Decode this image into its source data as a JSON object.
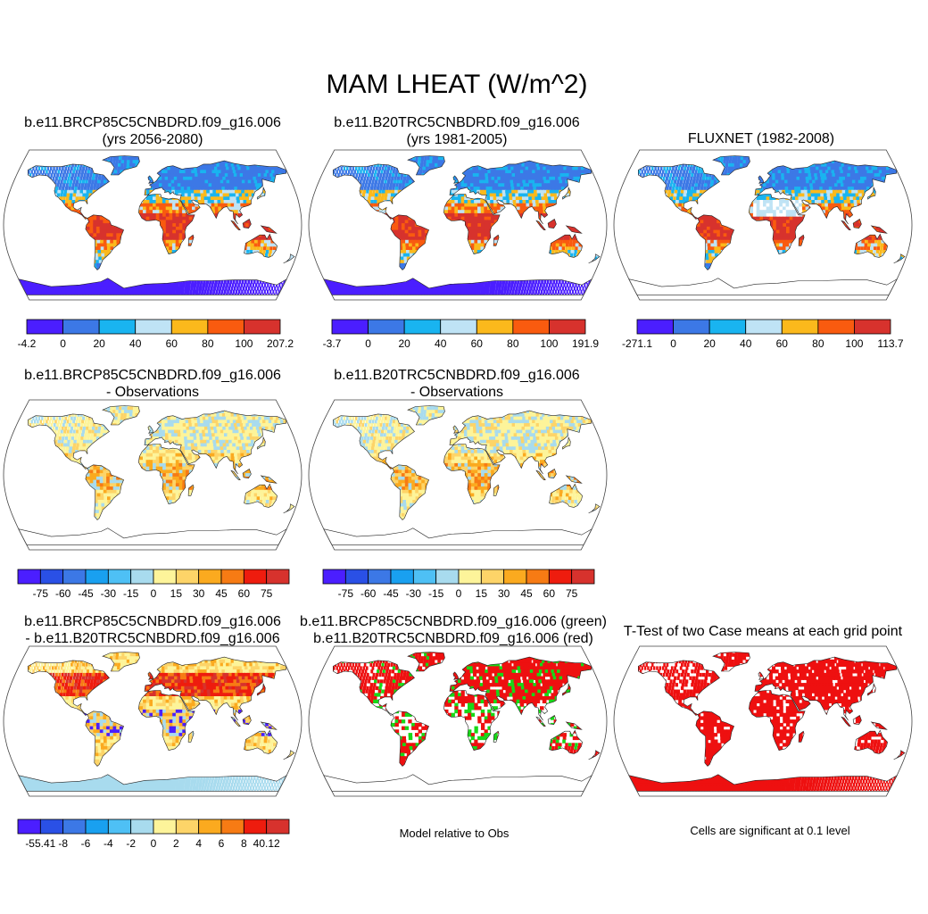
{
  "main_title": "MAM LHEAT (W/m^2)",
  "panels": [
    {
      "id": "p1",
      "title1": "b.e11.BRCP85C5CNBDRD.f09_g16.006",
      "title2": "(yrs 2056-2080)",
      "style": "abs"
    },
    {
      "id": "p2",
      "title1": "b.e11.B20TRC5CNBDRD.f09_g16.006",
      "title2": "(yrs 1981-2005)",
      "style": "abs"
    },
    {
      "id": "p3",
      "title1": "FLUXNET (1982-2008)",
      "title2": "",
      "style": "absobs"
    },
    {
      "id": "p4",
      "title1": "b.e11.BRCP85C5CNBDRD.f09_g16.006",
      "title2": "- Observations",
      "style": "diff"
    },
    {
      "id": "p5",
      "title1": "b.e11.B20TRC5CNBDRD.f09_g16.006",
      "title2": "- Observations",
      "style": "diff"
    },
    {
      "id": "p7",
      "title1": "b.e11.BRCP85C5CNBDRD.f09_g16.006",
      "title2": "- b.e11.B20TRC5CNBDRD.f09_g16.006",
      "style": "diff2"
    },
    {
      "id": "p8",
      "title1": "b.e11.BRCP85C5CNBDRD.f09_g16.006 (green)",
      "title2": "b.e11.B20TRC5CNBDRD.f09_g16.006 (red)",
      "style": "sig"
    },
    {
      "id": "p9",
      "title1": "T-Test of two Case means at each grid point",
      "title2": "",
      "style": "ttest"
    }
  ],
  "colorbars": {
    "cb1": {
      "colors": [
        "#4b1eff",
        "#3c78e6",
        "#19b4f0",
        "#bfe3f5",
        "#fbb91c",
        "#f95b0f",
        "#d7322d"
      ],
      "labels": [
        "-4.2",
        "0",
        "20",
        "40",
        "60",
        "80",
        "100",
        "207.2"
      ]
    },
    "cb2": {
      "colors": [
        "#4b1eff",
        "#3c78e6",
        "#19b4f0",
        "#bfe3f5",
        "#fbb91c",
        "#f95b0f",
        "#d7322d"
      ],
      "labels": [
        "-3.7",
        "0",
        "20",
        "40",
        "60",
        "80",
        "100",
        "191.9"
      ]
    },
    "cb3": {
      "colors": [
        "#4b1eff",
        "#3c78e6",
        "#19b4f0",
        "#bfe3f5",
        "#fbb91c",
        "#f95b0f",
        "#d7322d"
      ],
      "labels": [
        "-271.1",
        "0",
        "20",
        "40",
        "60",
        "80",
        "100",
        "113.7"
      ]
    },
    "cb4": {
      "colors": [
        "#4b1eff",
        "#2a50e6",
        "#3c78e6",
        "#19a0f0",
        "#4ec0f5",
        "#a8dbee",
        "#fdf49a",
        "#fdd468",
        "#fbaa1f",
        "#f77b14",
        "#ee1c0e",
        "#d7322d"
      ],
      "labels": [
        "-75",
        "-60",
        "-45",
        "-30",
        "-15",
        "0",
        "15",
        "30",
        "45",
        "60",
        "75"
      ]
    },
    "cb5": {
      "colors": [
        "#4b1eff",
        "#2a50e6",
        "#3c78e6",
        "#19a0f0",
        "#4ec0f5",
        "#a8dbee",
        "#fdf49a",
        "#fdd468",
        "#fbaa1f",
        "#f77b14",
        "#ee1c0e",
        "#d7322d"
      ],
      "labels": [
        "-75",
        "-60",
        "-45",
        "-30",
        "-15",
        "0",
        "15",
        "30",
        "45",
        "60",
        "75"
      ]
    },
    "cb7": {
      "colors": [
        "#4b1eff",
        "#2a50e6",
        "#3c78e6",
        "#19a0f0",
        "#4ec0f5",
        "#a8dbee",
        "#fdf49a",
        "#fdd468",
        "#fbaa1f",
        "#f77b14",
        "#ee1c0e",
        "#d7322d"
      ],
      "labels": [
        "-55.41",
        "-8",
        "-6",
        "-4",
        "-2",
        "0",
        "2",
        "4",
        "6",
        "8",
        "40.12"
      ]
    }
  },
  "notes": {
    "model_relative": "Model relative to Obs",
    "cells_significant": "Cells are significant at 0.1 level"
  },
  "palette": {
    "land_abs": [
      "#3c78e6",
      "#19b4f0",
      "#bfe3f5",
      "#fbb91c",
      "#f95b0f",
      "#d7322d"
    ],
    "land_diff": [
      "#fdf49a",
      "#fdd468",
      "#fbaa1f",
      "#a8dbee",
      "#f77b14"
    ],
    "sig_red": "#ee1010",
    "sig_green": "#18d818",
    "antarctica": "#4b1eff"
  }
}
